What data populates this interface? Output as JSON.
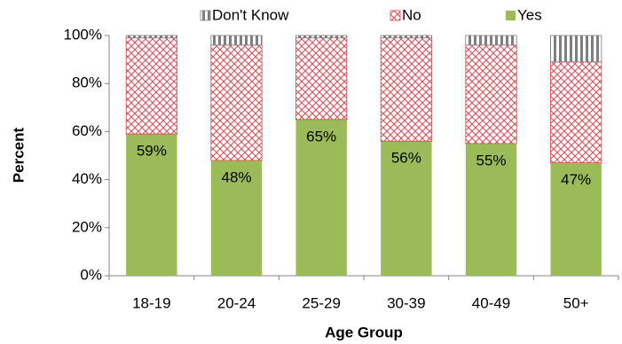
{
  "chart_data": {
    "type": "stacked-bar",
    "x_label": "Age Group",
    "y_label": "Percent",
    "categories": [
      "18-19",
      "20-24",
      "25-29",
      "30-39",
      "40-49",
      "50+"
    ],
    "series": [
      {
        "name": "Don't Know",
        "color": "#7f7f7f",
        "pattern": "vertical-lines",
        "values": [
          1,
          4,
          1,
          1,
          4,
          11
        ]
      },
      {
        "name": "No",
        "color": "#e0474c",
        "pattern": "crosshatch",
        "values": [
          40,
          48,
          34,
          43,
          41,
          42
        ]
      },
      {
        "name": "Yes",
        "color": "#9bbb59",
        "pattern": "solid",
        "values": [
          59,
          48,
          65,
          56,
          55,
          47
        ],
        "value_labels": [
          "59%",
          "48%",
          "65%",
          "56%",
          "55%",
          "47%"
        ]
      }
    ],
    "ylim": [
      0,
      100
    ],
    "yticks": [
      {
        "value": 0,
        "label": "0%"
      },
      {
        "value": 20,
        "label": "20%"
      },
      {
        "value": 40,
        "label": "40%"
      },
      {
        "value": 60,
        "label": "60%"
      },
      {
        "value": 80,
        "label": "80%"
      },
      {
        "value": 100,
        "label": "100%"
      }
    ],
    "grid": false,
    "legend": "top"
  }
}
